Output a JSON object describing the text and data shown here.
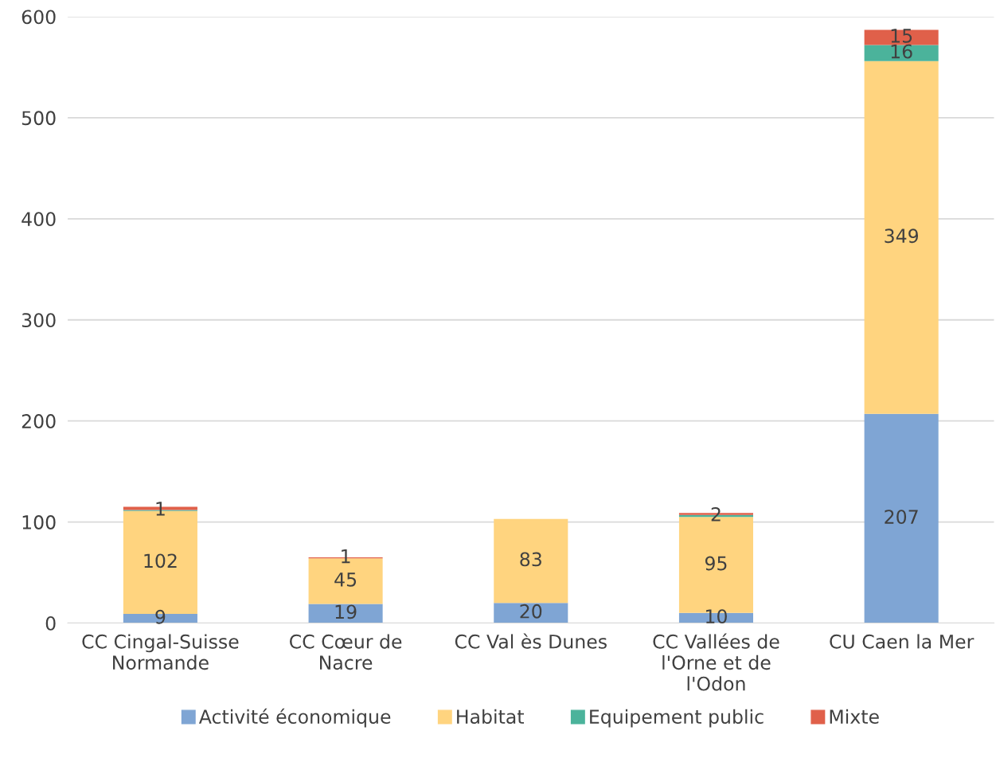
{
  "chart_data": {
    "type": "bar",
    "stacked": true,
    "categories": [
      "CC Cingal-Suisse\nNormande",
      "CC Cœur de\nNacre",
      "CC Val ès Dunes",
      "CC Vallées de\nl'Orne et de\nl'Odon",
      "CU Caen la Mer"
    ],
    "series": [
      {
        "name": "Activité économique",
        "color": "#7fa5d4",
        "values": [
          9,
          19,
          20,
          10,
          207
        ],
        "value_labels": [
          "9",
          "19",
          "20",
          "10",
          "207"
        ]
      },
      {
        "name": "Habitat",
        "color": "#ffd47f",
        "values": [
          102,
          45,
          83,
          95,
          349
        ],
        "value_labels": [
          "102",
          "45",
          "83",
          "95",
          "349"
        ]
      },
      {
        "name": "Equipement public",
        "color": "#4bb39b",
        "values": [
          1,
          null,
          null,
          2,
          16
        ],
        "value_labels": [
          "1",
          null,
          null,
          "2",
          "16"
        ]
      },
      {
        "name": "Mixte",
        "color": "#e0604a",
        "values": [
          3,
          1,
          null,
          2,
          15
        ],
        "value_labels": [
          null,
          "1",
          null,
          null,
          "15"
        ]
      }
    ],
    "ylim": [
      0,
      600
    ],
    "yticks": [
      0,
      100,
      200,
      300,
      400,
      500,
      600
    ],
    "grid": "y",
    "legend": "bottom"
  }
}
